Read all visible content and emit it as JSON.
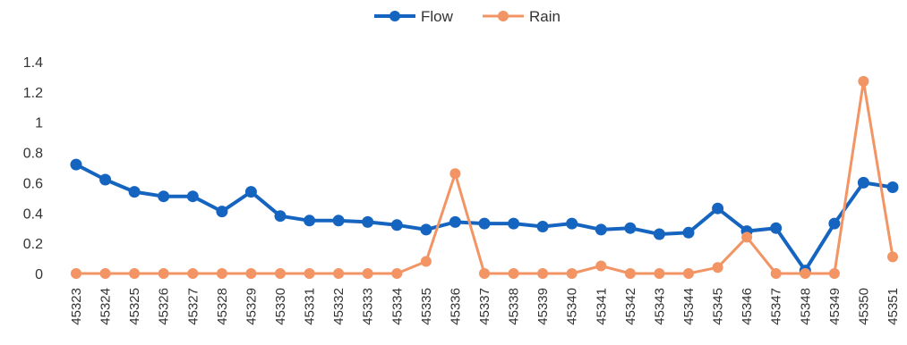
{
  "chart_data": {
    "type": "line",
    "legend_position": "top-center",
    "grid": false,
    "x": [
      "45323",
      "45324",
      "45325",
      "45326",
      "45327",
      "45328",
      "45329",
      "45330",
      "45331",
      "45332",
      "45333",
      "45334",
      "45335",
      "45336",
      "45337",
      "45338",
      "45339",
      "45340",
      "45341",
      "45342",
      "45343",
      "45344",
      "45345",
      "45346",
      "45347",
      "45348",
      "45349",
      "45350",
      "45351"
    ],
    "ylim": [
      0,
      1.4
    ],
    "yticks": [
      "0",
      "0.2",
      "0.4",
      "0.6",
      "0.8",
      "1",
      "1.2",
      "1.4"
    ],
    "series": [
      {
        "name": "Flow",
        "color": "#1565C0",
        "values": [
          0.72,
          0.62,
          0.54,
          0.51,
          0.51,
          0.41,
          0.54,
          0.38,
          0.35,
          0.35,
          0.34,
          0.32,
          0.29,
          0.34,
          0.33,
          0.33,
          0.31,
          0.33,
          0.29,
          0.3,
          0.26,
          0.27,
          0.43,
          0.28,
          0.3,
          0.02,
          0.33,
          0.6,
          0.57
        ]
      },
      {
        "name": "Rain",
        "color": "#F29464",
        "values": [
          0,
          0,
          0,
          0,
          0,
          0,
          0,
          0,
          0,
          0,
          0,
          0,
          0.08,
          0.66,
          0,
          0,
          0,
          0,
          0.05,
          0,
          0,
          0,
          0.04,
          0.24,
          0,
          0,
          0,
          1.27,
          0.11
        ]
      }
    ]
  }
}
